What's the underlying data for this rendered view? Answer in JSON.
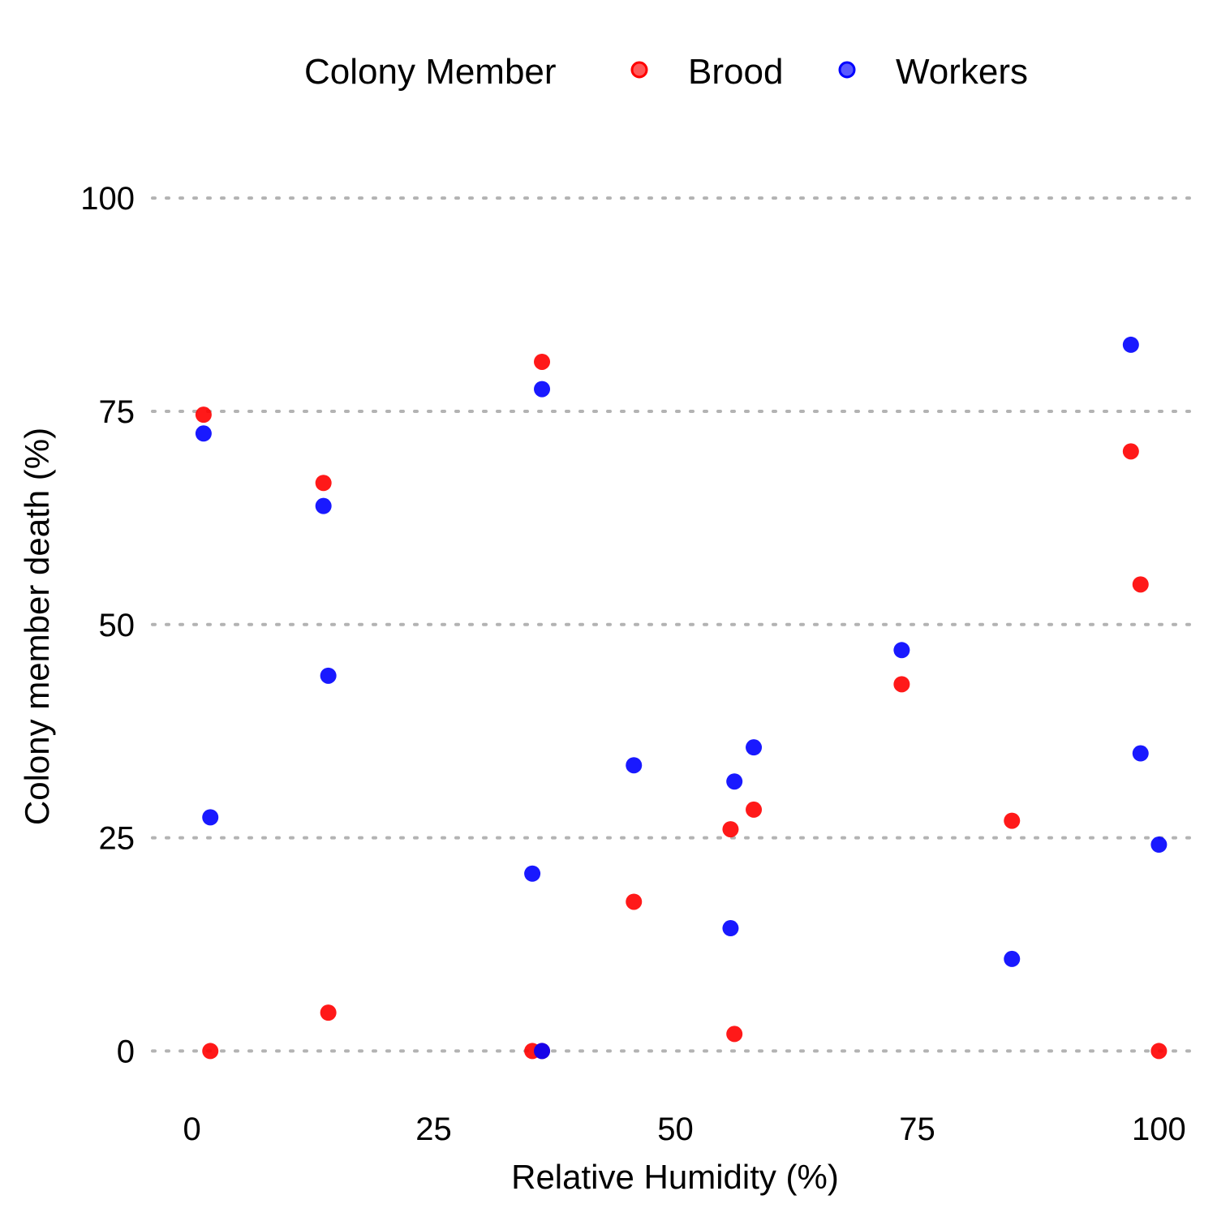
{
  "chart_data": {
    "type": "scatter",
    "title": "",
    "xlabel": "Relative Humidity (%)",
    "ylabel": "Colony member death (%)",
    "xlim": [
      -5,
      105
    ],
    "ylim": [
      -5,
      108
    ],
    "x_ticks": [
      0,
      25,
      50,
      75,
      100
    ],
    "y_ticks": [
      0,
      25,
      50,
      75,
      100
    ],
    "grid": "horizontal dotted",
    "legend": {
      "title": "Colony Member",
      "position": "top"
    },
    "series": [
      {
        "name": "Brood",
        "color": "#ff0000",
        "points": [
          {
            "x": 1.2,
            "y": 74.6
          },
          {
            "x": 1.9,
            "y": 0
          },
          {
            "x": 13.6,
            "y": 66.6
          },
          {
            "x": 14.1,
            "y": 4.5
          },
          {
            "x": 35.2,
            "y": 0
          },
          {
            "x": 36.2,
            "y": 0
          },
          {
            "x": 36.2,
            "y": 80.8
          },
          {
            "x": 45.7,
            "y": 17.5
          },
          {
            "x": 55.7,
            "y": 26.0
          },
          {
            "x": 56.1,
            "y": 2.0
          },
          {
            "x": 58.1,
            "y": 28.3
          },
          {
            "x": 73.4,
            "y": 43.0
          },
          {
            "x": 84.8,
            "y": 27.0
          },
          {
            "x": 97.1,
            "y": 70.3
          },
          {
            "x": 98.1,
            "y": 54.7
          },
          {
            "x": 100.0,
            "y": 0
          }
        ]
      },
      {
        "name": "Workers",
        "color": "#0000ff",
        "points": [
          {
            "x": 1.2,
            "y": 72.4
          },
          {
            "x": 1.9,
            "y": 27.4
          },
          {
            "x": 13.6,
            "y": 63.9
          },
          {
            "x": 14.1,
            "y": 44.0
          },
          {
            "x": 35.2,
            "y": 20.8
          },
          {
            "x": 36.2,
            "y": 0
          },
          {
            "x": 36.2,
            "y": 77.6
          },
          {
            "x": 45.7,
            "y": 33.5
          },
          {
            "x": 55.7,
            "y": 14.4
          },
          {
            "x": 56.1,
            "y": 31.6
          },
          {
            "x": 58.1,
            "y": 35.6
          },
          {
            "x": 73.4,
            "y": 47.0
          },
          {
            "x": 84.8,
            "y": 10.8
          },
          {
            "x": 97.1,
            "y": 82.8
          },
          {
            "x": 98.1,
            "y": 34.9
          },
          {
            "x": 100.0,
            "y": 24.2
          }
        ]
      }
    ]
  }
}
